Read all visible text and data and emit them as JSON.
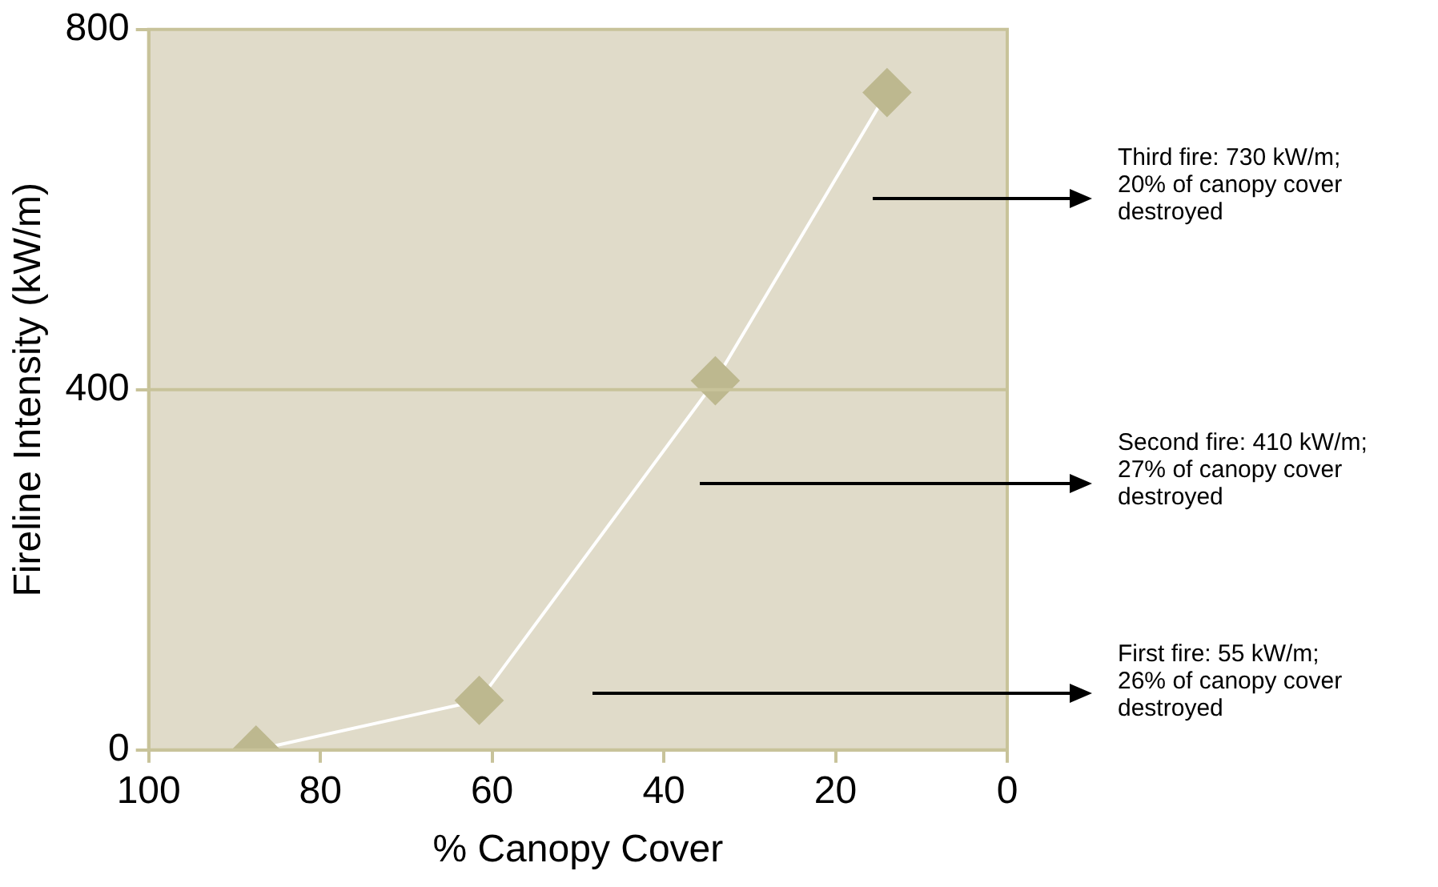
{
  "chart_data": {
    "type": "line",
    "xlabel": "% Canopy Cover",
    "ylabel": "Fireline Intensity (kW/m)",
    "x": [
      87.5,
      61.5,
      34,
      14
    ],
    "series": [
      {
        "color": "#bdb88f",
        "values": [
          0,
          55,
          410,
          730
        ]
      }
    ],
    "xlim": [
      100,
      0
    ],
    "xticks": [
      100,
      80,
      60,
      40,
      20,
      0
    ],
    "ylim": [
      0,
      800
    ],
    "yticks": [
      0,
      400,
      800
    ],
    "ref_lines": [
      {
        "axis": "y",
        "value": 400,
        "color": "#c8c39a"
      }
    ],
    "legend": false,
    "marker": "diamond",
    "line_style": "solid",
    "annotations": [
      "Third fire: 730 kW/m;\n20% of canopy cover\ndestroyed",
      "Second fire: 410 kW/m;\n27% of canopy cover\ndestroyed",
      "First fire: 55 kW/m;\n26% of canopy cover\ndestroyed"
    ]
  }
}
